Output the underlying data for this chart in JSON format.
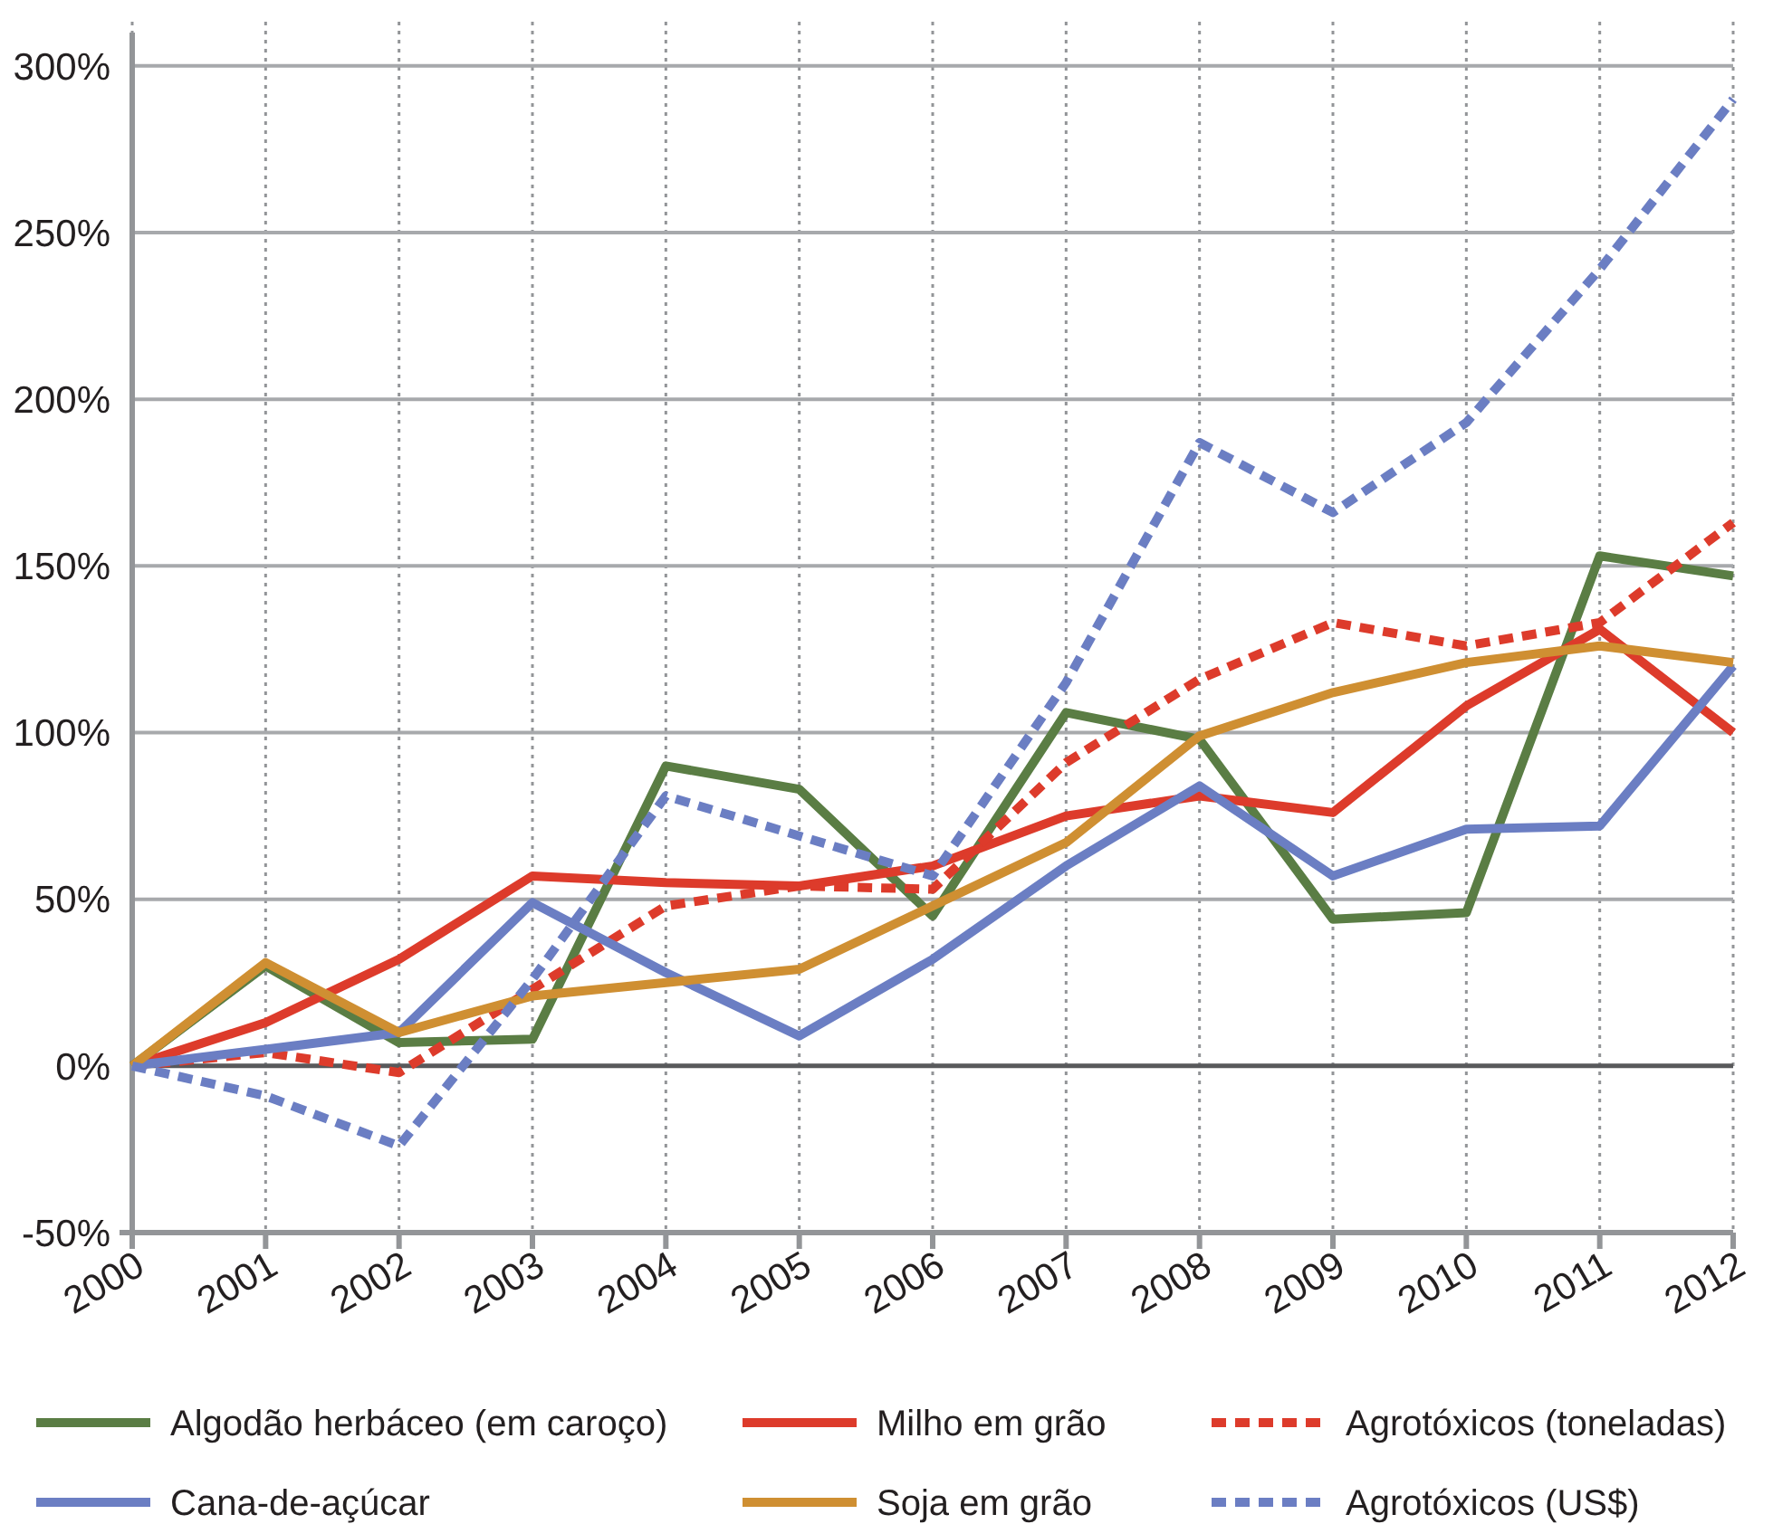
{
  "chart_data": {
    "type": "line",
    "categories": [
      "2000",
      "2001",
      "2002",
      "2003",
      "2004",
      "2005",
      "2006",
      "2007",
      "2008",
      "2009",
      "2010",
      "2011",
      "2012"
    ],
    "ylim": [
      -50,
      310
    ],
    "yticks": [
      {
        "value": -50,
        "label": "-50%"
      },
      {
        "value": 0,
        "label": "0%"
      },
      {
        "value": 50,
        "label": "50%"
      },
      {
        "value": 100,
        "label": "100%"
      },
      {
        "value": 150,
        "label": "150%"
      },
      {
        "value": 200,
        "label": "200%"
      },
      {
        "value": 250,
        "label": "250%"
      },
      {
        "value": 300,
        "label": "300%"
      }
    ],
    "grid": true,
    "legend": "bottom",
    "ref_lines": [
      {
        "axis": "y",
        "value": 0,
        "color": "#58595b"
      }
    ],
    "series": [
      {
        "name": "Algodão herbáceo (em caroço)",
        "color": "#5a7d44",
        "line_style": "solid",
        "values": [
          0,
          30,
          7,
          8,
          90,
          83,
          45,
          106,
          98,
          44,
          46,
          153,
          147
        ]
      },
      {
        "name": "Milho em grão",
        "color": "#dd3b2b",
        "line_style": "solid",
        "values": [
          0,
          13,
          32,
          57,
          55,
          54,
          60,
          75,
          81,
          76,
          108,
          131,
          100
        ]
      },
      {
        "name": "Agrotóxicos (toneladas)",
        "color": "#dd3b2b",
        "line_style": "dotted",
        "values": [
          0,
          4,
          -2,
          23,
          48,
          54,
          53,
          91,
          116,
          133,
          126,
          133,
          163
        ]
      },
      {
        "name": "Cana-de-açúcar",
        "color": "#6b7ec3",
        "line_style": "solid",
        "values": [
          0,
          5,
          10,
          49,
          28,
          9,
          32,
          60,
          84,
          57,
          71,
          72,
          120
        ]
      },
      {
        "name": "Soja em grão",
        "color": "#cf8f32",
        "line_style": "solid",
        "values": [
          0,
          31,
          10,
          21,
          25,
          29,
          48,
          67,
          99,
          112,
          121,
          126,
          121
        ]
      },
      {
        "name": "Agrotóxicos (US$)",
        "color": "#6b7ec3",
        "line_style": "dotted",
        "values": [
          0,
          -9,
          -24,
          26,
          81,
          69,
          57,
          115,
          187,
          166,
          193,
          239,
          290
        ]
      }
    ]
  }
}
